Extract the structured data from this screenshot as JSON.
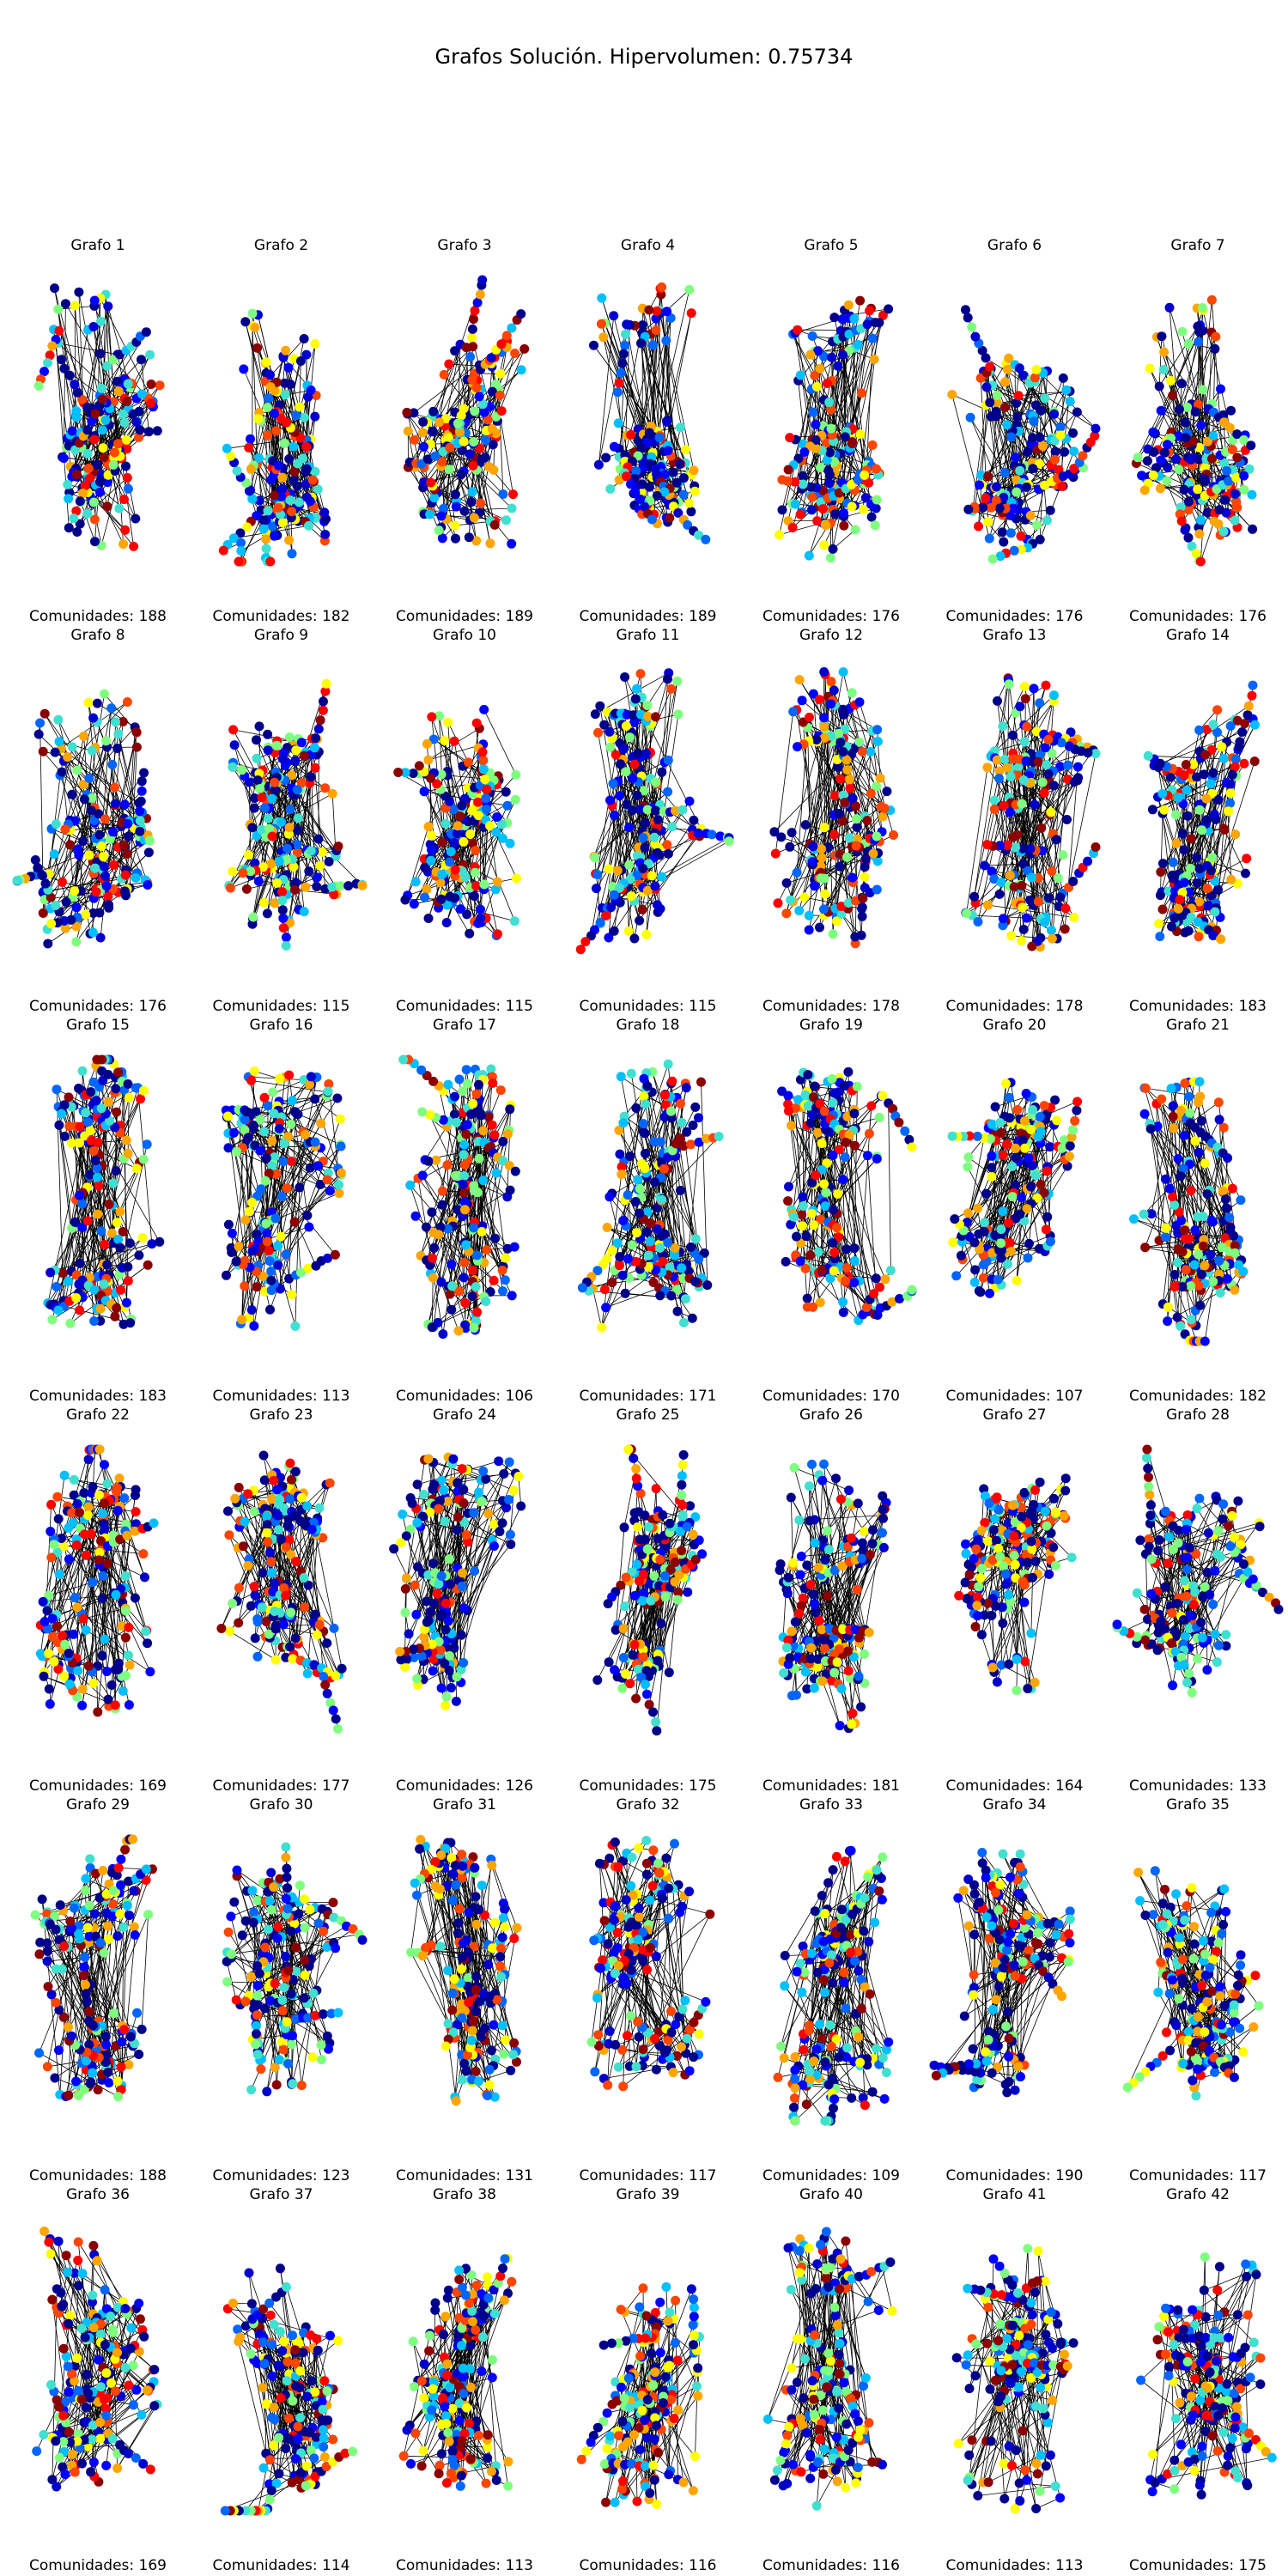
{
  "figure": {
    "title": "Grafos Solución. Hipervolumen: 0.75734",
    "footer_prefix": "Comunidades: ",
    "graphs": [
      {
        "label": "Grafo 1",
        "communities": 188
      },
      {
        "label": "Grafo 2",
        "communities": 182
      },
      {
        "label": "Grafo 3",
        "communities": 189
      },
      {
        "label": "Grafo 4",
        "communities": 189
      },
      {
        "label": "Grafo 5",
        "communities": 176
      },
      {
        "label": "Grafo 6",
        "communities": 176
      },
      {
        "label": "Grafo 7",
        "communities": 176
      },
      {
        "label": "Grafo 8",
        "communities": 176
      },
      {
        "label": "Grafo 9",
        "communities": 115
      },
      {
        "label": "Grafo 10",
        "communities": 115
      },
      {
        "label": "Grafo 11",
        "communities": 115
      },
      {
        "label": "Grafo 12",
        "communities": 178
      },
      {
        "label": "Grafo 13",
        "communities": 178
      },
      {
        "label": "Grafo 14",
        "communities": 183
      },
      {
        "label": "Grafo 15",
        "communities": 183
      },
      {
        "label": "Grafo 16",
        "communities": 113
      },
      {
        "label": "Grafo 17",
        "communities": 106
      },
      {
        "label": "Grafo 18",
        "communities": 171
      },
      {
        "label": "Grafo 19",
        "communities": 170
      },
      {
        "label": "Grafo 20",
        "communities": 107
      },
      {
        "label": "Grafo 21",
        "communities": 182
      },
      {
        "label": "Grafo 22",
        "communities": 169
      },
      {
        "label": "Grafo 23",
        "communities": 177
      },
      {
        "label": "Grafo 24",
        "communities": 126
      },
      {
        "label": "Grafo 25",
        "communities": 175
      },
      {
        "label": "Grafo 26",
        "communities": 181
      },
      {
        "label": "Grafo 27",
        "communities": 164
      },
      {
        "label": "Grafo 28",
        "communities": 133
      },
      {
        "label": "Grafo 29",
        "communities": 188
      },
      {
        "label": "Grafo 30",
        "communities": 123
      },
      {
        "label": "Grafo 31",
        "communities": 131
      },
      {
        "label": "Grafo 32",
        "communities": 117
      },
      {
        "label": "Grafo 33",
        "communities": 109
      },
      {
        "label": "Grafo 34",
        "communities": 190
      },
      {
        "label": "Grafo 35",
        "communities": 117
      },
      {
        "label": "Grafo 36",
        "communities": 169
      },
      {
        "label": "Grafo 37",
        "communities": 114
      },
      {
        "label": "Grafo 38",
        "communities": 113
      },
      {
        "label": "Grafo 39",
        "communities": 116
      },
      {
        "label": "Grafo 40",
        "communities": 116
      },
      {
        "label": "Grafo 41",
        "communities": 113
      },
      {
        "label": "Grafo 42",
        "communities": 175
      }
    ],
    "node_palette": [
      "#00008b",
      "#00008b",
      "#00008b",
      "#0000cd",
      "#0000ff",
      "#0066ff",
      "#00bfff",
      "#40e0d0",
      "#7fff7f",
      "#ffff00",
      "#ffa500",
      "#ff4500",
      "#ff0000",
      "#8b0000"
    ],
    "edge_color": "#000000"
  }
}
